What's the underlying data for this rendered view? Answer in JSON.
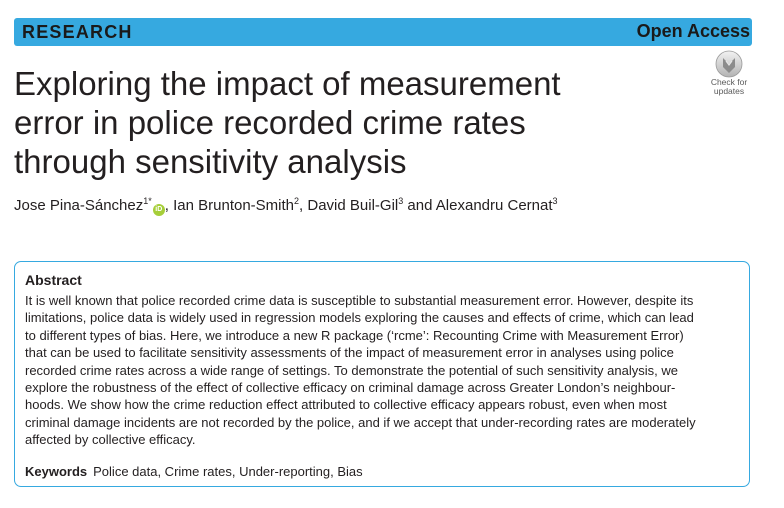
{
  "header": {
    "section_label": "RESEARCH",
    "access_label": "Open Access",
    "update_badge": {
      "icon": "check-for-updates-icon",
      "line1": "Check for",
      "line2": "updates"
    },
    "bar_color": "#36a9e0"
  },
  "title": {
    "lines": [
      "Exploring the impact of measurement",
      "error in police recorded crime rates",
      "through sensitivity analysis"
    ]
  },
  "authors": [
    {
      "name": "Jose Pina-Sánchez",
      "sup": "1*",
      "orcid": true,
      "sep": ", "
    },
    {
      "name": "Ian Brunton-Smith",
      "sup": "2",
      "sep": ", "
    },
    {
      "name": "David Buil-Gil",
      "sup": "3",
      "sep": " and "
    },
    {
      "name": "Alexandru Cernat",
      "sup": "3",
      "sep": ""
    }
  ],
  "orcid_icon": "orcid-icon",
  "abstract": {
    "heading": "Abstract",
    "lines": [
      "It is well known that police recorded crime data is susceptible to substantial measurement error. However, despite its",
      "limitations, police data is widely used in regression models exploring the causes and effects of crime, which can lead",
      "to different types of bias. Here, we introduce a new R package (‘rcme’: Recounting Crime with Measurement Error)",
      "that can be used to facilitate sensitivity assessments of the impact of measurement error in analyses using police",
      "recorded crime rates across a wide range of settings. To demonstrate the potential of such sensitivity analysis, we",
      "explore the robustness of the effect of collective efficacy on criminal damage across Greater London’s neighbour-",
      "hoods. We show how the crime reduction effect attributed to collective efficacy appears robust, even when most",
      "criminal damage incidents are not recorded by the police, and if we accept that under-recording rates are moderately",
      "affected by collective efficacy."
    ]
  },
  "keywords": {
    "label": "Keywords",
    "text": "Police data, Crime rates, Under-reporting, Bias"
  }
}
